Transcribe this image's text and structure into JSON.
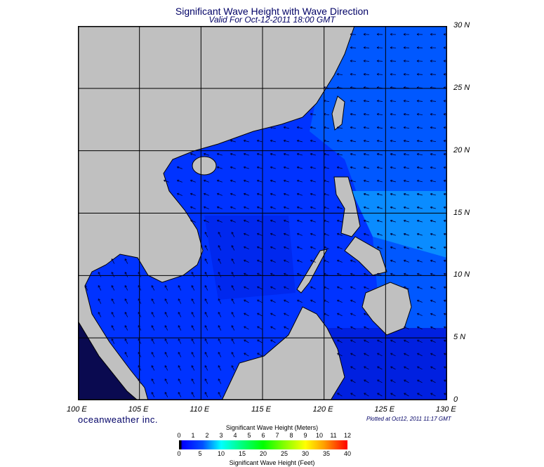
{
  "title": "Significant Wave Height with Wave Direction",
  "subtitle": "Valid For Oct-12-2011 18:00 GMT",
  "map": {
    "lon_range": [
      100,
      130
    ],
    "lat_range": [
      0,
      30
    ],
    "lon_labels": [
      "100 E",
      "105 E",
      "110 E",
      "115 E",
      "120 E",
      "125 E",
      "130 E"
    ],
    "lat_labels": [
      "30 N",
      "25 N",
      "20 N",
      "15 N",
      "10 N",
      "5 N",
      "0"
    ],
    "land_color": "#c0c0c0",
    "ocean_color": "#0033ff",
    "arrow_direction": "westward / north-westward"
  },
  "brand": "oceanweather inc.",
  "plotted": "Plotted at Oct12, 2011 11:17 GMT",
  "colorbar": {
    "title_meters": "Significant Wave Height (Meters)",
    "title_feet": "Significant Wave Height (Feet)",
    "meters_ticks": [
      "0",
      "1",
      "2",
      "3",
      "4",
      "5",
      "6",
      "7",
      "8",
      "9",
      "10",
      "11",
      "12"
    ],
    "feet_ticks": [
      "0",
      "5",
      "10",
      "15",
      "20",
      "25",
      "30",
      "35",
      "40"
    ],
    "colors": [
      "#000000",
      "#0000ff",
      "#00ffff",
      "#00ff00",
      "#ffff00",
      "#ff0000"
    ]
  }
}
